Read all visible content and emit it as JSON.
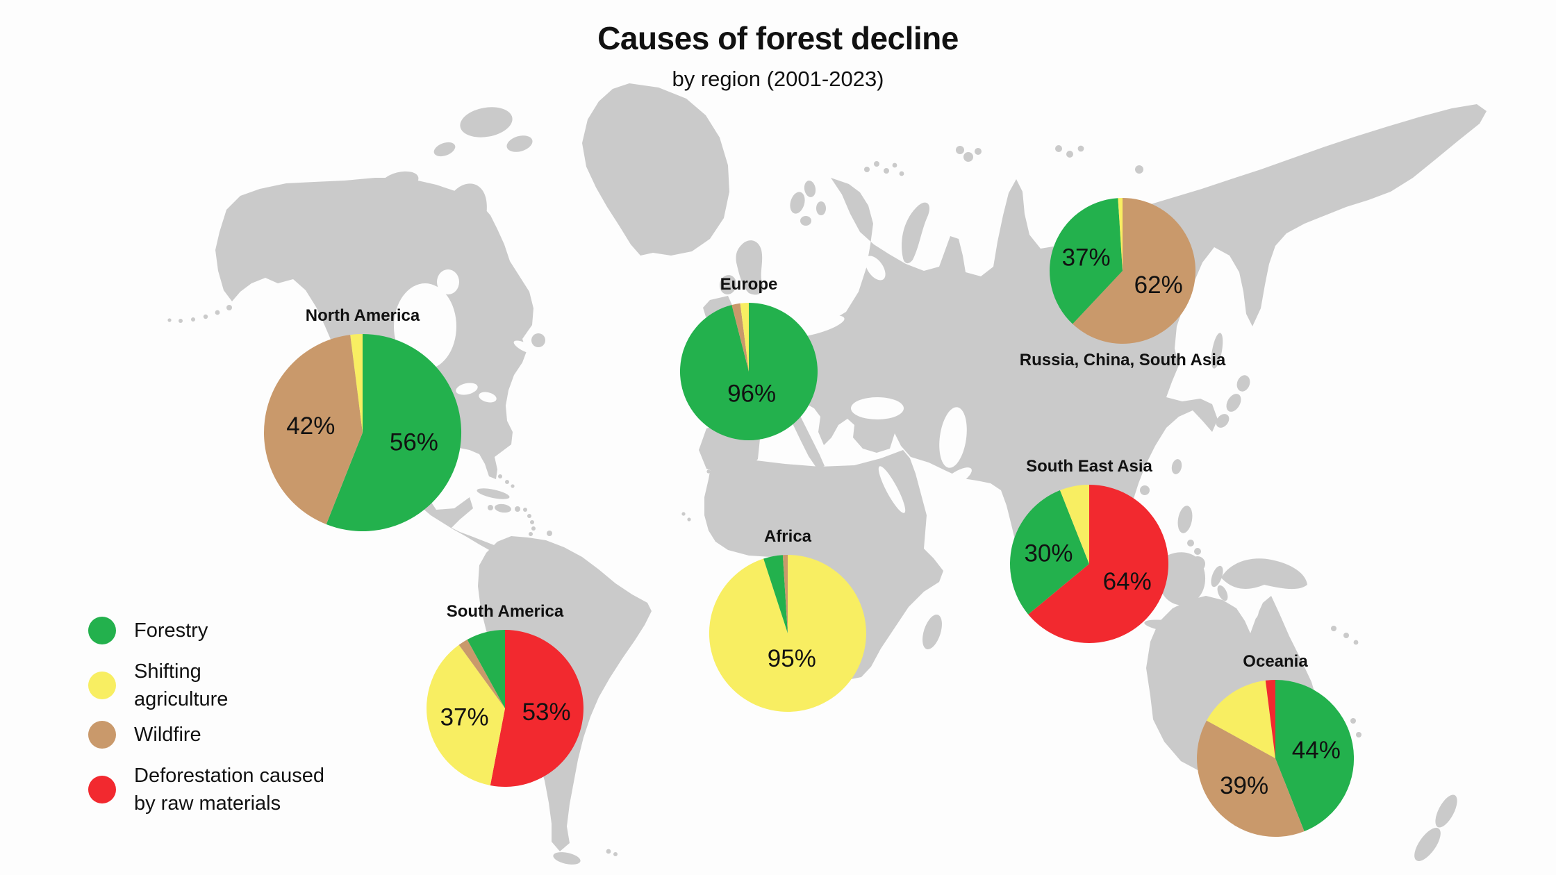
{
  "title": "Causes of forest decline",
  "subtitle": "by region (2001-2023)",
  "legend": {
    "items": [
      {
        "id": "forestry",
        "label_lines": [
          "Forestry"
        ],
        "color": "#23B14D"
      },
      {
        "id": "shifting",
        "label_lines": [
          "Shifting",
          "agriculture"
        ],
        "color": "#F8EE62"
      },
      {
        "id": "wildfire",
        "label_lines": [
          "Wildfire"
        ],
        "color": "#C9996B"
      },
      {
        "id": "deforestation",
        "label_lines": [
          "Deforestation caused",
          "by raw materials"
        ],
        "color": "#F2292F"
      }
    ]
  },
  "chart_data": {
    "type": "pie",
    "unit": "%",
    "title": "Causes of forest decline",
    "subtitle": "by region (2001-2023)",
    "slice_order": "clockwise from 12 o'clock",
    "value_label_rule": "slices of 30% or more show a percentage label",
    "causes": {
      "forestry": "Forestry",
      "shifting": "Shifting agriculture",
      "wildfire": "Wildfire",
      "deforestation": "Deforestation caused by raw materials"
    },
    "regions": [
      {
        "id": "north-america",
        "name": "North America",
        "slices": [
          {
            "cause": "forestry",
            "value": 56
          },
          {
            "cause": "wildfire",
            "value": 42
          },
          {
            "cause": "shifting",
            "value": 2
          }
        ]
      },
      {
        "id": "europe",
        "name": "Europe",
        "slices": [
          {
            "cause": "forestry",
            "value": 96
          },
          {
            "cause": "wildfire",
            "value": 2
          },
          {
            "cause": "shifting",
            "value": 2
          }
        ]
      },
      {
        "id": "russia-china-south-asia",
        "name": "Russia, China, South Asia",
        "slices": [
          {
            "cause": "wildfire",
            "value": 62
          },
          {
            "cause": "forestry",
            "value": 37
          },
          {
            "cause": "shifting",
            "value": 1
          }
        ]
      },
      {
        "id": "south-east-asia",
        "name": "South East Asia",
        "slices": [
          {
            "cause": "deforestation",
            "value": 64
          },
          {
            "cause": "forestry",
            "value": 30
          },
          {
            "cause": "shifting",
            "value": 6
          }
        ]
      },
      {
        "id": "africa",
        "name": "Africa",
        "slices": [
          {
            "cause": "shifting",
            "value": 95
          },
          {
            "cause": "forestry",
            "value": 4
          },
          {
            "cause": "wildfire",
            "value": 1
          }
        ]
      },
      {
        "id": "south-america",
        "name": "South America",
        "slices": [
          {
            "cause": "deforestation",
            "value": 53
          },
          {
            "cause": "shifting",
            "value": 37
          },
          {
            "cause": "wildfire",
            "value": 2
          },
          {
            "cause": "forestry",
            "value": 8
          }
        ]
      },
      {
        "id": "oceania",
        "name": "Oceania",
        "slices": [
          {
            "cause": "forestry",
            "value": 44
          },
          {
            "cause": "wildfire",
            "value": 39
          },
          {
            "cause": "shifting",
            "value": 15
          },
          {
            "cause": "deforestation",
            "value": 2
          }
        ]
      }
    ]
  },
  "colors": {
    "forestry": "#23B14D",
    "shifting": "#F8EE62",
    "wildfire": "#C9996B",
    "deforestation": "#F2292F",
    "land": "#CACACA",
    "background": "#FDFDFD",
    "text": "#111111"
  }
}
